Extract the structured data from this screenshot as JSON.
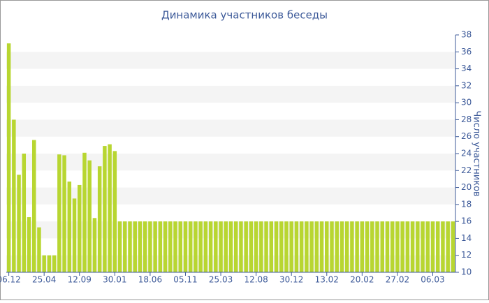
{
  "chart_data": {
    "type": "bar",
    "title": "Динамика участников беседы",
    "y_label": "Число участников",
    "categories": [
      "06.12",
      null,
      null,
      null,
      null,
      null,
      null,
      "25.04",
      null,
      null,
      null,
      null,
      null,
      null,
      "12.09",
      null,
      null,
      null,
      null,
      null,
      null,
      "30.01",
      null,
      null,
      null,
      null,
      null,
      null,
      "18.06",
      null,
      null,
      null,
      null,
      null,
      null,
      "05.11",
      null,
      null,
      null,
      null,
      null,
      null,
      "25.03",
      null,
      null,
      null,
      null,
      null,
      null,
      "12.08",
      null,
      null,
      null,
      null,
      null,
      null,
      "30.12",
      null,
      null,
      null,
      null,
      null,
      null,
      "13.02",
      null,
      null,
      null,
      null,
      null,
      null,
      "20.02",
      null,
      null,
      null,
      null,
      null,
      null,
      "27.02",
      null,
      null,
      null,
      null,
      null,
      null,
      "06.03",
      null,
      null,
      null,
      null
    ],
    "values": [
      37,
      28,
      21.5,
      24,
      16.5,
      25.6,
      15.3,
      12,
      12,
      12,
      23.9,
      23.8,
      20.7,
      18.7,
      20.3,
      24.1,
      23.2,
      16.4,
      22.5,
      24.9,
      25.1,
      24.3,
      16,
      16,
      16,
      16,
      16,
      16,
      16,
      16,
      16,
      16,
      16,
      16,
      16,
      16,
      16,
      16,
      16,
      16,
      16,
      16,
      16,
      16,
      16,
      16,
      16,
      16,
      16,
      16,
      16,
      16,
      16,
      16,
      16,
      16,
      16,
      16,
      16,
      16,
      16,
      16,
      16,
      16,
      16,
      16,
      16,
      16,
      16,
      16,
      16,
      16,
      16,
      16,
      16,
      16,
      16,
      16,
      16,
      16,
      16,
      16,
      16,
      16,
      16,
      16,
      16,
      16,
      16
    ],
    "color": "#b8d631",
    "ylim": [
      10,
      38
    ],
    "yticks": [
      10,
      12,
      14,
      16,
      18,
      20,
      22,
      24,
      26,
      28,
      30,
      32,
      34,
      36,
      38
    ],
    "grid": true
  }
}
